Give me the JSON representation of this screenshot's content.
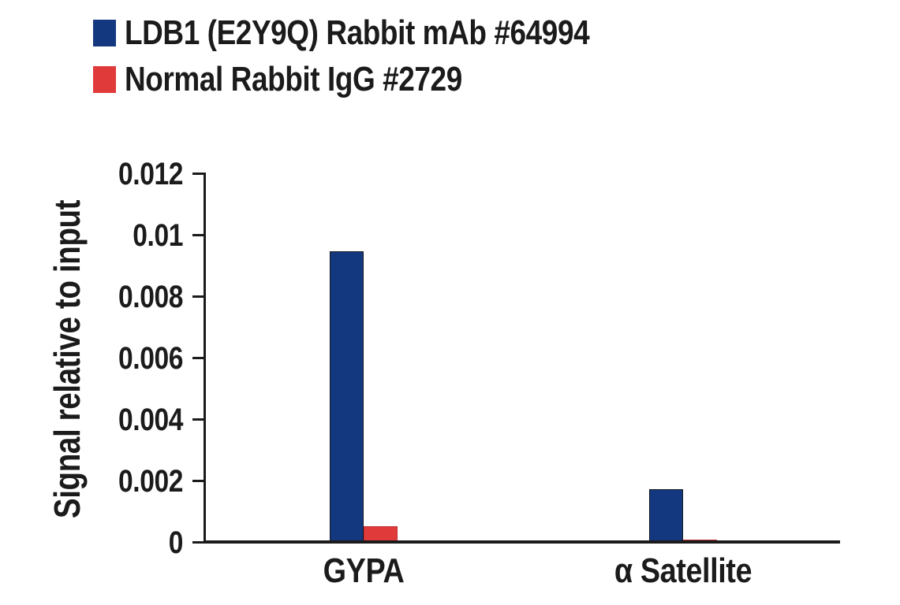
{
  "chart_data": {
    "type": "bar",
    "categories": [
      "GYPA",
      "α Satellite"
    ],
    "series": [
      {
        "name": "LDB1 (E2Y9Q) Rabbit mAb #64994",
        "color": "#14387F",
        "outline": "#16181d",
        "values": [
          0.0095,
          0.00175
        ]
      },
      {
        "name": "Normal Rabbit IgG #2729",
        "color": "#E03A3B",
        "outline": "#c13032",
        "values": [
          0.00055,
          0.0001
        ]
      }
    ],
    "title": "",
    "xlabel": "",
    "ylabel": "Signal relative to input",
    "ylim": [
      0,
      0.012
    ],
    "yticks": [
      0,
      0.002,
      0.004,
      0.006,
      0.008,
      0.01,
      0.012
    ],
    "ytick_labels": [
      "0",
      "0.002",
      "0.004",
      "0.006",
      "0.008",
      "0.01",
      "0.012"
    ],
    "grid": false,
    "legend_position": "top-left",
    "axis_color": "#1b1b1b"
  }
}
